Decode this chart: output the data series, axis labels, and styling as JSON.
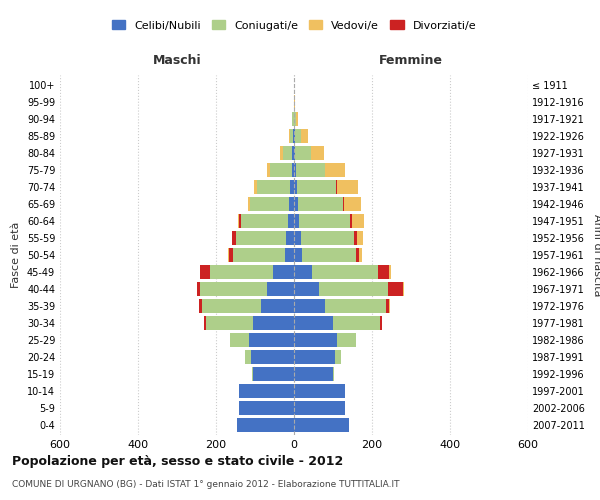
{
  "age_groups": [
    "0-4",
    "5-9",
    "10-14",
    "15-19",
    "20-24",
    "25-29",
    "30-34",
    "35-39",
    "40-44",
    "45-49",
    "50-54",
    "55-59",
    "60-64",
    "65-69",
    "70-74",
    "75-79",
    "80-84",
    "85-89",
    "90-94",
    "95-99",
    "100+"
  ],
  "birth_years": [
    "2007-2011",
    "2002-2006",
    "1997-2001",
    "1992-1996",
    "1987-1991",
    "1982-1986",
    "1977-1981",
    "1972-1976",
    "1967-1971",
    "1962-1966",
    "1957-1961",
    "1952-1956",
    "1947-1951",
    "1942-1946",
    "1937-1941",
    "1932-1936",
    "1927-1931",
    "1922-1926",
    "1917-1921",
    "1912-1916",
    "≤ 1911"
  ],
  "male": {
    "celibi": [
      145,
      140,
      140,
      105,
      110,
      115,
      105,
      85,
      70,
      55,
      22,
      20,
      16,
      12,
      10,
      6,
      4,
      2,
      1,
      0,
      0
    ],
    "coniugati": [
      0,
      0,
      0,
      2,
      15,
      50,
      120,
      150,
      170,
      160,
      135,
      130,
      120,
      100,
      85,
      55,
      25,
      8,
      3,
      1,
      0
    ],
    "vedovi": [
      0,
      0,
      0,
      0,
      0,
      0,
      0,
      1,
      1,
      2,
      2,
      2,
      3,
      5,
      8,
      7,
      6,
      3,
      1,
      0,
      0
    ],
    "divorziati": [
      0,
      0,
      0,
      0,
      0,
      0,
      5,
      8,
      8,
      25,
      10,
      8,
      5,
      2,
      0,
      0,
      0,
      0,
      0,
      0,
      0
    ]
  },
  "female": {
    "nubili": [
      140,
      130,
      130,
      100,
      105,
      110,
      100,
      80,
      65,
      45,
      20,
      18,
      14,
      10,
      8,
      5,
      3,
      2,
      1,
      0,
      0
    ],
    "coniugate": [
      0,
      0,
      0,
      2,
      15,
      50,
      120,
      155,
      175,
      170,
      138,
      135,
      130,
      115,
      100,
      75,
      40,
      15,
      5,
      1,
      0
    ],
    "vedove": [
      0,
      0,
      0,
      0,
      0,
      0,
      1,
      2,
      3,
      5,
      8,
      15,
      30,
      45,
      55,
      50,
      35,
      20,
      5,
      1,
      0
    ],
    "divorziate": [
      0,
      0,
      0,
      0,
      0,
      0,
      5,
      8,
      40,
      28,
      8,
      8,
      5,
      3,
      2,
      0,
      0,
      0,
      0,
      0,
      0
    ]
  },
  "colors": {
    "celibi": "#4472C4",
    "coniugati": "#AECF8A",
    "vedovi": "#F0C060",
    "divorziati": "#CC2222"
  },
  "xlim": 600,
  "title": "Popolazione per età, sesso e stato civile - 2012",
  "subtitle": "COMUNE DI URGNANO (BG) - Dati ISTAT 1° gennaio 2012 - Elaborazione TUTTITALIA.IT",
  "ylabel": "Fasce di età",
  "ylabel_right": "Anni di nascita",
  "legend_labels": [
    "Celibi/Nubili",
    "Coniugati/e",
    "Vedovi/e",
    "Divorziati/e"
  ],
  "background_color": "#ffffff",
  "grid_color": "#cccccc"
}
